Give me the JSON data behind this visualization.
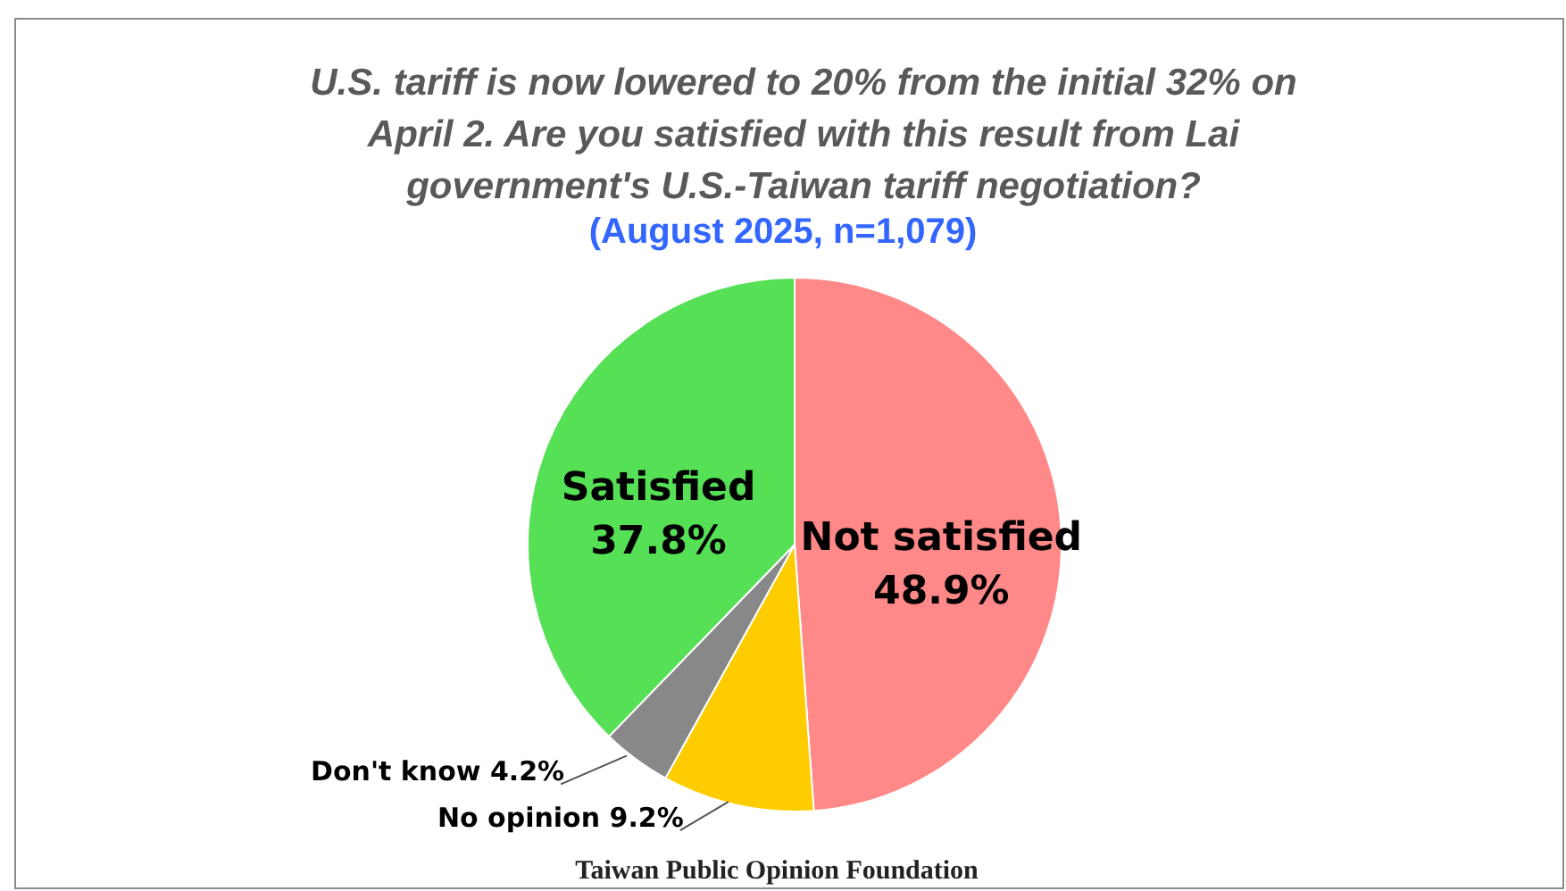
{
  "chart_data": {
    "type": "pie",
    "title": "U.S. tariff is now lowered to 20% from the initial 32% on April 2. Are you satisfied with this result from Lai government's U.S.-Taiwan tariff negotiation?",
    "subtitle": "(August 2025, n=1,079)",
    "categories": [
      "Not satisfied",
      "No opinion",
      "Don't know",
      "Satisfied"
    ],
    "values": [
      48.9,
      9.2,
      4.2,
      37.8
    ],
    "value_labels": [
      "48.9%",
      "9.2%",
      "4.2%",
      "37.8%"
    ],
    "colors": [
      "#ff8888",
      "#ffcc00",
      "#888888",
      "#55e055"
    ],
    "annotations": [
      "Taiwan Public Opinion Foundation"
    ],
    "legend": false
  }
}
